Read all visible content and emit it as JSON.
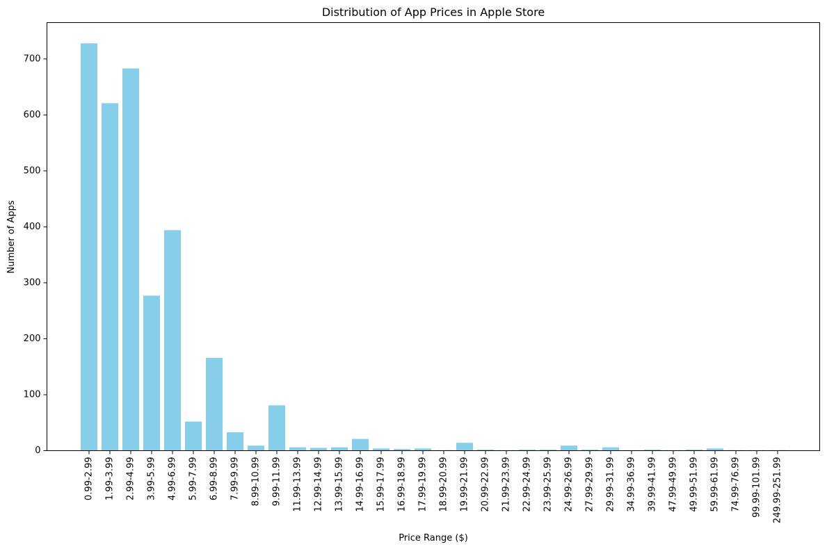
{
  "chart_data": {
    "type": "bar",
    "title": "Distribution of App Prices in Apple Store",
    "xlabel": "Price Range ($)",
    "ylabel": "Number of Apps",
    "ylim": [
      0,
      765
    ],
    "yticks": [
      0,
      100,
      200,
      300,
      400,
      500,
      600,
      700
    ],
    "bar_color": "#87ceeb",
    "grid": false,
    "categories": [
      "0.99-2.99",
      "1.99-3.99",
      "2.99-4.99",
      "3.99-5.99",
      "4.99-6.99",
      "5.99-7.99",
      "6.99-8.99",
      "7.99-9.99",
      "8.99-10.99",
      "9.99-11.99",
      "11.99-13.99",
      "12.99-14.99",
      "13.99-15.99",
      "14.99-16.99",
      "15.99-17.99",
      "16.99-18.99",
      "17.99-19.99",
      "18.99-20.99",
      "19.99-21.99",
      "20.99-22.99",
      "21.99-23.99",
      "22.99-24.99",
      "23.99-25.99",
      "24.99-26.99",
      "27.99-29.99",
      "29.99-31.99",
      "34.99-36.99",
      "39.99-41.99",
      "47.99-49.99",
      "49.99-51.99",
      "59.99-61.99",
      "74.99-76.99",
      "99.99-101.99",
      "249.99-251.99"
    ],
    "values": [
      728,
      621,
      683,
      277,
      394,
      52,
      166,
      33,
      9,
      81,
      6,
      5,
      6,
      21,
      4,
      3,
      4,
      1,
      14,
      2,
      1,
      2,
      2,
      9,
      2,
      6,
      1,
      2,
      1,
      2,
      4,
      1,
      1,
      1
    ]
  }
}
